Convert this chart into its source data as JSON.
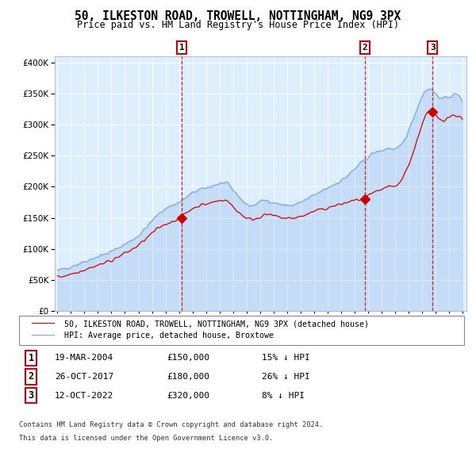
{
  "title": "50, ILKESTON ROAD, TROWELL, NOTTINGHAM, NG9 3PX",
  "subtitle": "Price paid vs. HM Land Registry's House Price Index (HPI)",
  "legend_line1": "50, ILKESTON ROAD, TROWELL, NOTTINGHAM, NG9 3PX (detached house)",
  "legend_line2": "HPI: Average price, detached house, Broxtowe",
  "footer1": "Contains HM Land Registry data © Crown copyright and database right 2024.",
  "footer2": "This data is licensed under the Open Government Licence v3.0.",
  "sale_dates": [
    "19-MAR-2004",
    "26-OCT-2017",
    "12-OCT-2022"
  ],
  "sale_prices": [
    150000,
    180000,
    320000
  ],
  "sale_labels": [
    "1",
    "2",
    "3"
  ],
  "sale_hpi_diff": [
    "15% ↓ HPI",
    "26% ↓ HPI",
    "8% ↓ HPI"
  ],
  "hpi_color": "#7aaadd",
  "price_color": "#cc0000",
  "sale_marker_color": "#cc0000",
  "vline_color": "#cc0000",
  "plot_bg": "#ddeeff",
  "grid_color": "#ffffff",
  "ylim": [
    0,
    410000
  ],
  "yticks": [
    0,
    50000,
    100000,
    150000,
    200000,
    250000,
    300000,
    350000,
    400000
  ],
  "start_year": 1995,
  "end_year": 2025,
  "hpi_curve_points": [
    [
      1995.0,
      65000
    ],
    [
      1996.0,
      72000
    ],
    [
      1997.0,
      80000
    ],
    [
      1998.0,
      88000
    ],
    [
      1999.0,
      96000
    ],
    [
      2000.0,
      108000
    ],
    [
      2001.0,
      122000
    ],
    [
      2002.0,
      145000
    ],
    [
      2003.0,
      165000
    ],
    [
      2004.0,
      175000
    ],
    [
      2004.5,
      182000
    ],
    [
      2005.0,
      190000
    ],
    [
      2005.5,
      195000
    ],
    [
      2006.0,
      198000
    ],
    [
      2006.5,
      202000
    ],
    [
      2007.0,
      205000
    ],
    [
      2007.5,
      205000
    ],
    [
      2008.0,
      195000
    ],
    [
      2008.5,
      183000
    ],
    [
      2009.0,
      172000
    ],
    [
      2009.5,
      170000
    ],
    [
      2010.0,
      176000
    ],
    [
      2010.5,
      178000
    ],
    [
      2011.0,
      175000
    ],
    [
      2011.5,
      172000
    ],
    [
      2012.0,
      170000
    ],
    [
      2012.5,
      171000
    ],
    [
      2013.0,
      175000
    ],
    [
      2013.5,
      180000
    ],
    [
      2014.0,
      186000
    ],
    [
      2014.5,
      192000
    ],
    [
      2015.0,
      198000
    ],
    [
      2015.5,
      204000
    ],
    [
      2016.0,
      210000
    ],
    [
      2016.5,
      218000
    ],
    [
      2017.0,
      228000
    ],
    [
      2017.5,
      238000
    ],
    [
      2018.0,
      248000
    ],
    [
      2018.5,
      255000
    ],
    [
      2019.0,
      258000
    ],
    [
      2019.5,
      262000
    ],
    [
      2020.0,
      260000
    ],
    [
      2020.5,
      268000
    ],
    [
      2021.0,
      290000
    ],
    [
      2021.5,
      318000
    ],
    [
      2022.0,
      345000
    ],
    [
      2022.5,
      358000
    ],
    [
      2023.0,
      350000
    ],
    [
      2023.5,
      342000
    ],
    [
      2024.0,
      345000
    ],
    [
      2024.5,
      348000
    ],
    [
      2025.0,
      340000
    ]
  ],
  "price_curve_points": [
    [
      1995.0,
      55000
    ],
    [
      1996.0,
      60000
    ],
    [
      1997.0,
      67000
    ],
    [
      1998.0,
      74000
    ],
    [
      1999.0,
      82000
    ],
    [
      2000.0,
      93000
    ],
    [
      2001.0,
      106000
    ],
    [
      2002.0,
      125000
    ],
    [
      2003.0,
      140000
    ],
    [
      2004.0,
      150000
    ],
    [
      2004.5,
      158000
    ],
    [
      2005.0,
      165000
    ],
    [
      2005.5,
      170000
    ],
    [
      2006.0,
      172000
    ],
    [
      2006.5,
      175000
    ],
    [
      2007.0,
      178000
    ],
    [
      2007.5,
      178000
    ],
    [
      2008.0,
      168000
    ],
    [
      2008.5,
      158000
    ],
    [
      2009.0,
      150000
    ],
    [
      2009.5,
      148000
    ],
    [
      2010.0,
      152000
    ],
    [
      2010.5,
      155000
    ],
    [
      2011.0,
      153000
    ],
    [
      2011.5,
      151000
    ],
    [
      2012.0,
      149000
    ],
    [
      2012.5,
      150000
    ],
    [
      2013.0,
      152000
    ],
    [
      2013.5,
      156000
    ],
    [
      2014.0,
      160000
    ],
    [
      2014.5,
      163000
    ],
    [
      2015.0,
      166000
    ],
    [
      2015.5,
      169000
    ],
    [
      2016.0,
      172000
    ],
    [
      2016.5,
      175000
    ],
    [
      2017.0,
      178000
    ],
    [
      2017.5,
      180000
    ],
    [
      2018.0,
      185000
    ],
    [
      2018.5,
      190000
    ],
    [
      2019.0,
      195000
    ],
    [
      2019.5,
      200000
    ],
    [
      2020.0,
      200000
    ],
    [
      2020.5,
      212000
    ],
    [
      2021.0,
      235000
    ],
    [
      2021.5,
      265000
    ],
    [
      2022.0,
      300000
    ],
    [
      2022.5,
      320000
    ],
    [
      2023.0,
      315000
    ],
    [
      2023.5,
      308000
    ],
    [
      2024.0,
      312000
    ],
    [
      2024.5,
      315000
    ],
    [
      2025.0,
      308000
    ]
  ]
}
